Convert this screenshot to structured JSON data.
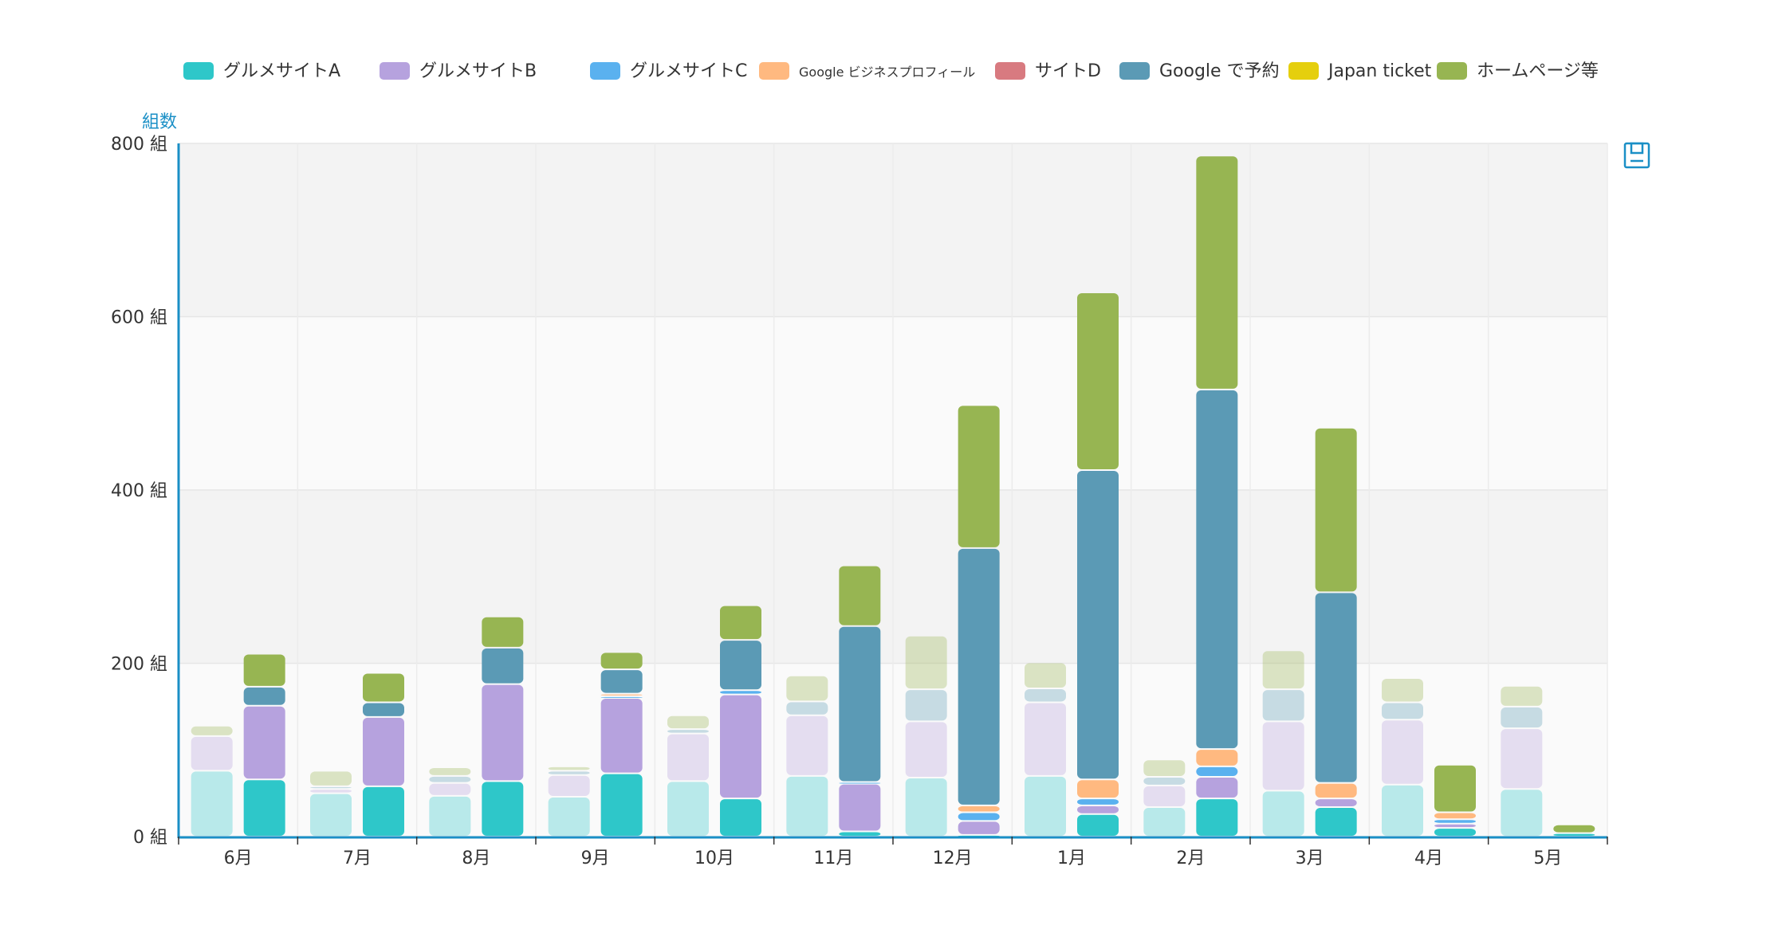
{
  "chart_data": {
    "type": "bar",
    "stacked": true,
    "grouped": true,
    "categories": [
      "6月",
      "7月",
      "8月",
      "9月",
      "10月",
      "11月",
      "12月",
      "1月",
      "2月",
      "3月",
      "4月",
      "5月"
    ],
    "ylabel": "組数",
    "ylim": [
      0,
      800
    ],
    "y_ticks": [
      0,
      200,
      400,
      600,
      800
    ],
    "y_tick_labels": [
      "0 組",
      "200 組",
      "400 組",
      "600 組",
      "800 組"
    ],
    "grid": true,
    "legend_position": "top",
    "legend": [
      {
        "name": "グルメサイトA",
        "color": "#2ec7c9"
      },
      {
        "name": "グルメサイトB",
        "color": "#b6a2de"
      },
      {
        "name": "グルメサイトC",
        "color": "#5ab1ef"
      },
      {
        "name": "Google ビジネスプロフィール",
        "color": "#ffb980"
      },
      {
        "name": "サイトD",
        "color": "#d87a80"
      },
      {
        "name": "Google で予約",
        "color": "#5b9ab5"
      },
      {
        "name": "Japan ticket",
        "color": "#e5cf0d"
      },
      {
        "name": "ホームページ等",
        "color": "#97b552"
      }
    ],
    "groups": [
      {
        "style": "faded",
        "series": [
          {
            "legend_index": 0,
            "values": [
              76,
              50,
              47,
              46,
              64,
              70,
              68,
              70,
              34,
              53,
              60,
              55
            ]
          },
          {
            "legend_index": 1,
            "values": [
              40,
              5,
              15,
              25,
              55,
              70,
              65,
              85,
              25,
              80,
              75,
              70
            ]
          },
          {
            "legend_index": 2,
            "values": [
              0,
              0,
              0,
              0,
              0,
              0,
              0,
              0,
              0,
              0,
              0,
              0
            ]
          },
          {
            "legend_index": 3,
            "values": [
              0,
              0,
              0,
              0,
              0,
              0,
              0,
              0,
              0,
              0,
              0,
              0
            ]
          },
          {
            "legend_index": 4,
            "values": [
              0,
              0,
              0,
              0,
              0,
              0,
              0,
              0,
              0,
              0,
              0,
              0
            ]
          },
          {
            "legend_index": 5,
            "values": [
              0,
              3,
              8,
              5,
              5,
              16,
              37,
              16,
              10,
              37,
              20,
              25
            ]
          },
          {
            "legend_index": 6,
            "values": [
              0,
              0,
              0,
              0,
              0,
              0,
              0,
              0,
              0,
              0,
              0,
              0
            ]
          },
          {
            "legend_index": 7,
            "values": [
              12,
              18,
              10,
              5,
              16,
              30,
              62,
              30,
              20,
              45,
              28,
              24
            ]
          }
        ]
      },
      {
        "style": "solid",
        "series": [
          {
            "legend_index": 0,
            "values": [
              66,
              58,
              64,
              73,
              44,
              6,
              2,
              26,
              44,
              34,
              10,
              4
            ]
          },
          {
            "legend_index": 1,
            "values": [
              85,
              80,
              112,
              87,
              120,
              55,
              16,
              10,
              25,
              10,
              5,
              0
            ]
          },
          {
            "legend_index": 2,
            "values": [
              0,
              0,
              0,
              2,
              5,
              2,
              10,
              8,
              12,
              0,
              5,
              0
            ]
          },
          {
            "legend_index": 3,
            "values": [
              0,
              0,
              0,
              3,
              0,
              0,
              8,
              22,
              20,
              18,
              8,
              0
            ]
          },
          {
            "legend_index": 4,
            "values": [
              0,
              0,
              0,
              0,
              0,
              0,
              0,
              0,
              0,
              0,
              0,
              0
            ]
          },
          {
            "legend_index": 5,
            "values": [
              22,
              17,
              42,
              28,
              58,
              180,
              297,
              357,
              415,
              220,
              0,
              0
            ]
          },
          {
            "legend_index": 6,
            "values": [
              0,
              0,
              0,
              0,
              0,
              0,
              0,
              0,
              0,
              0,
              0,
              0
            ]
          },
          {
            "legend_index": 7,
            "values": [
              38,
              34,
              36,
              20,
              40,
              70,
              165,
              205,
              270,
              190,
              55,
              10
            ]
          }
        ]
      }
    ]
  },
  "toolbar": {
    "save_icon": "save-as-image-icon"
  }
}
